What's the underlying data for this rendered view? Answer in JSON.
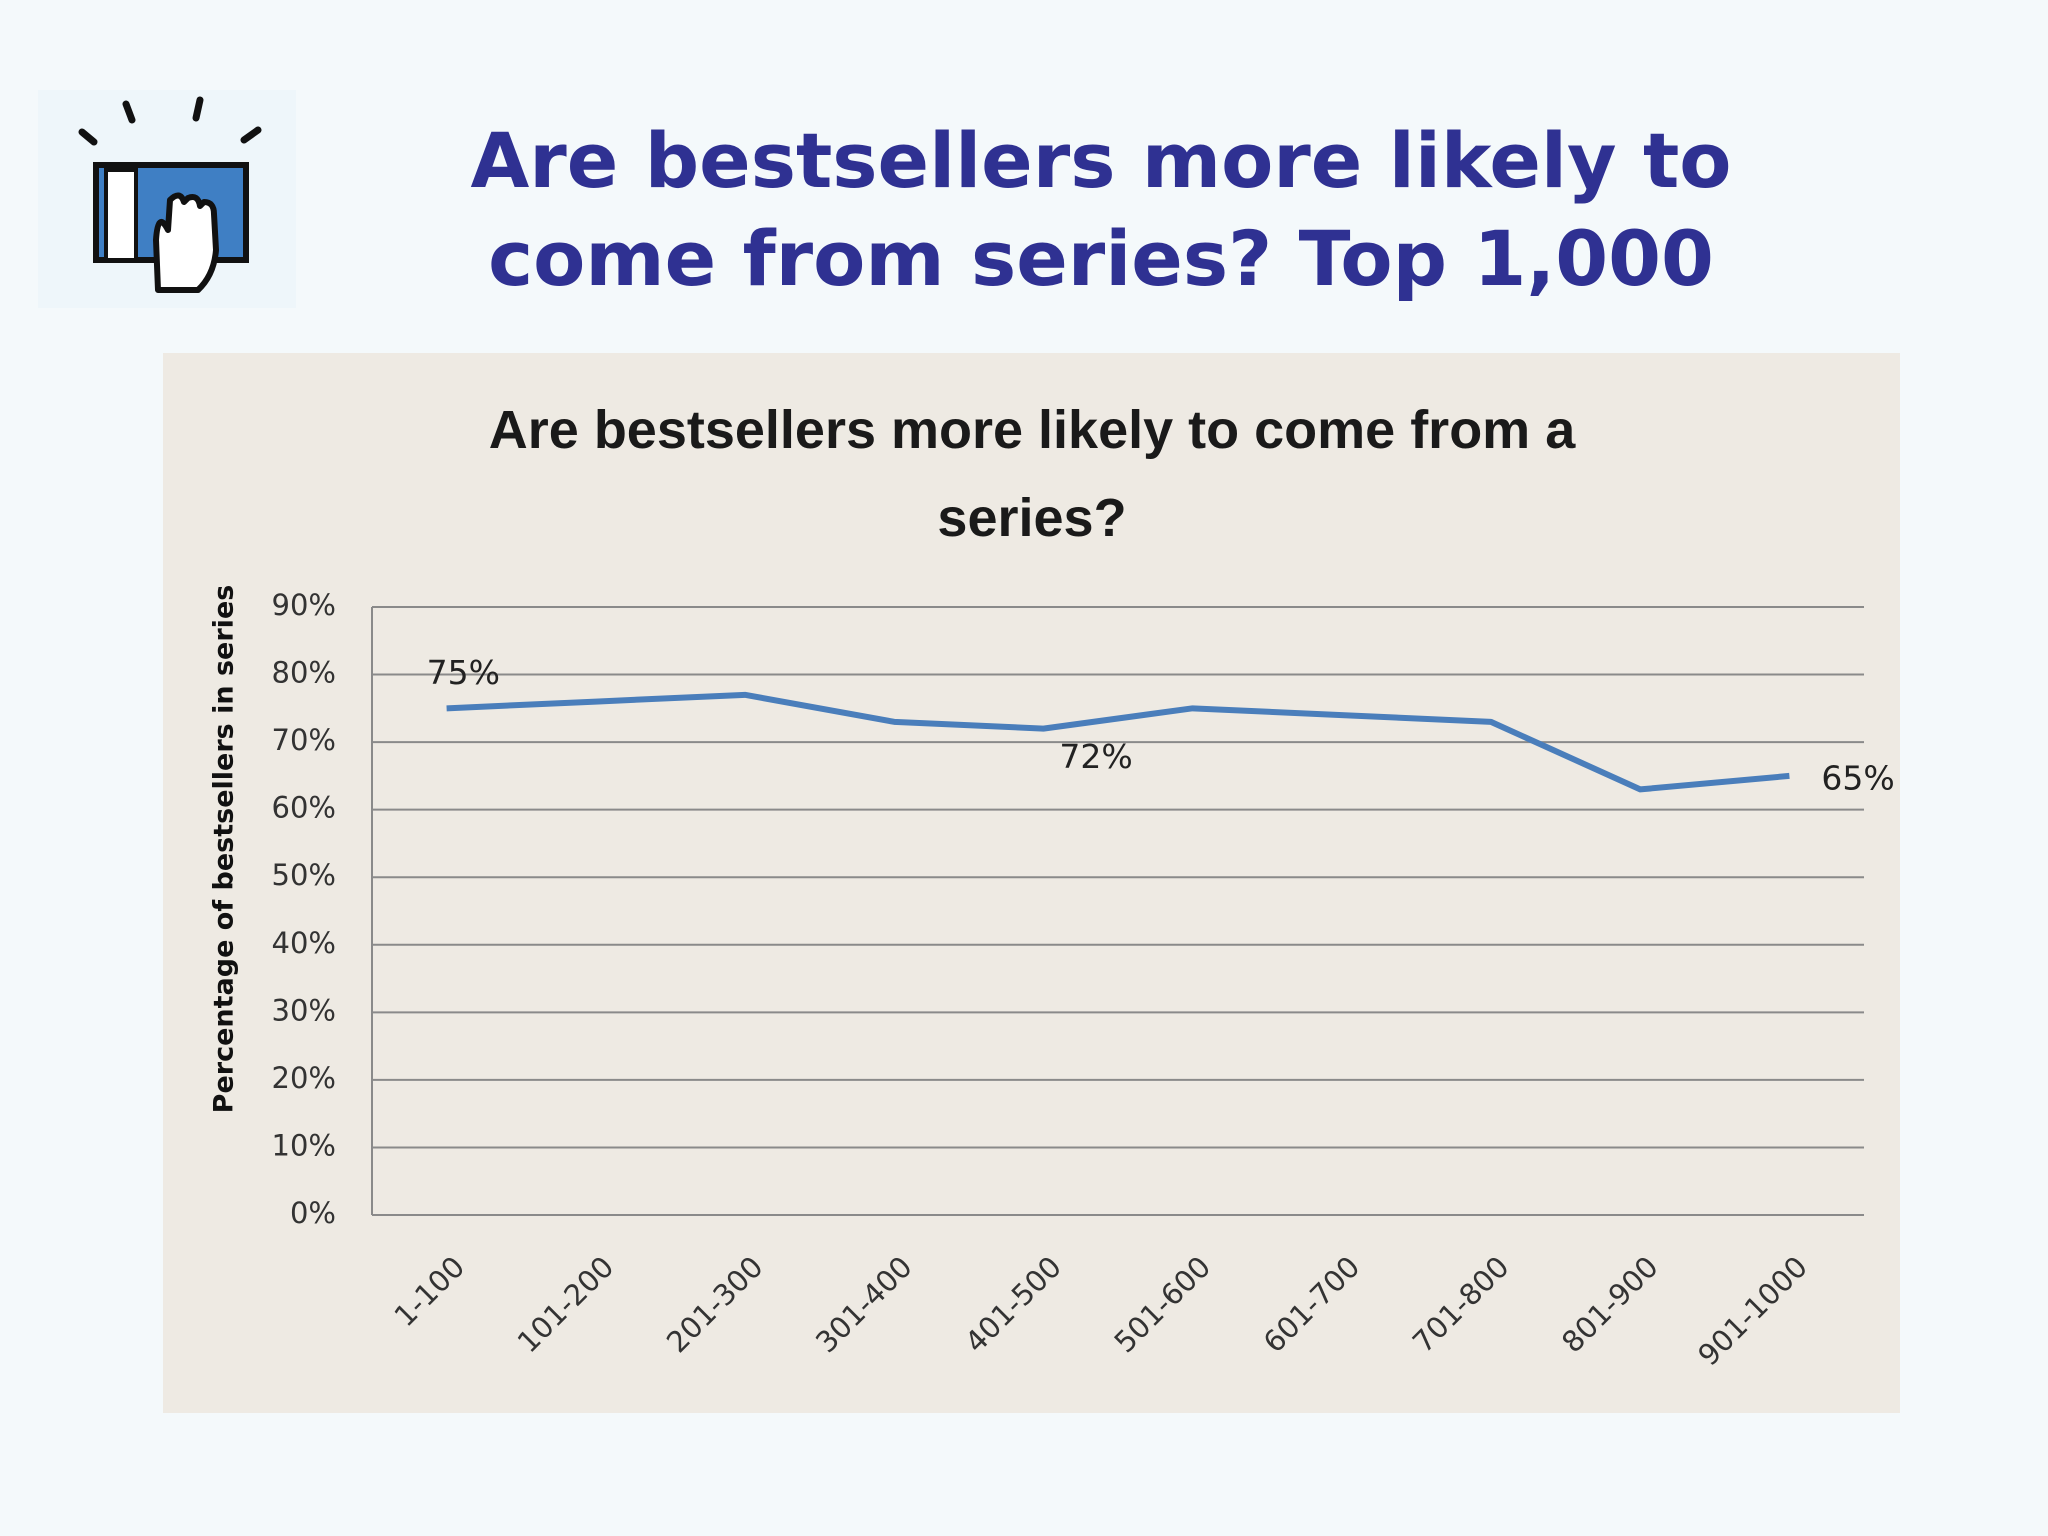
{
  "slide_title": "Are bestsellers more likely to come from series? Top 1,000",
  "chart_data": {
    "type": "line",
    "title": "Are bestsellers more likely to come from a series?",
    "y_label": "Percentage of bestsellers in series",
    "categories": [
      "1-100",
      "101-200",
      "201-300",
      "301-400",
      "401-500",
      "501-600",
      "601-700",
      "701-800",
      "801-900",
      "901-1000"
    ],
    "values": [
      75,
      76,
      77,
      73,
      72,
      75,
      74,
      73,
      63,
      65
    ],
    "value_labels": [
      "75%",
      null,
      null,
      null,
      "72%",
      null,
      null,
      null,
      null,
      "65%"
    ],
    "color": "#4a7ebb",
    "ylim": [
      0,
      90
    ],
    "yticks": [
      {
        "value": 0,
        "label": "0%"
      },
      {
        "value": 10,
        "label": "10%"
      },
      {
        "value": 20,
        "label": "20%"
      },
      {
        "value": 30,
        "label": "30%"
      },
      {
        "value": 40,
        "label": "40%"
      },
      {
        "value": 50,
        "label": "50%"
      },
      {
        "value": 60,
        "label": "60%"
      },
      {
        "value": 70,
        "label": "70%"
      },
      {
        "value": 80,
        "label": "80%"
      },
      {
        "value": 90,
        "label": "90%"
      }
    ],
    "grid": true
  }
}
